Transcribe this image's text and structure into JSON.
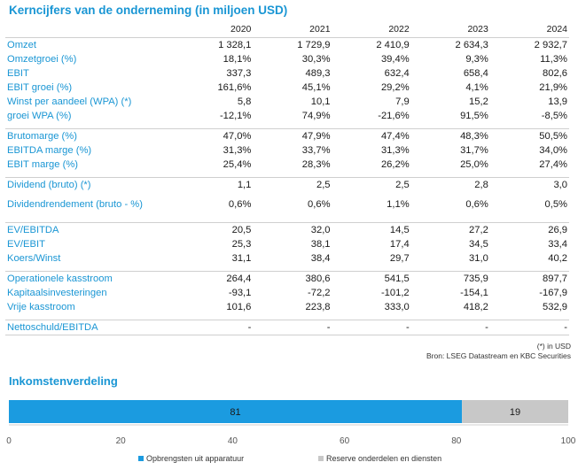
{
  "title": "Kerncijfers van de onderneming (in miljoen USD)",
  "years": [
    "2020",
    "2021",
    "2022",
    "2023",
    "2024"
  ],
  "groups": [
    [
      {
        "label": "Omzet",
        "values": [
          "1 328,1",
          "1 729,9",
          "2 410,9",
          "2 634,3",
          "2 932,7"
        ]
      },
      {
        "label": "Omzetgroei (%)",
        "values": [
          "18,1%",
          "30,3%",
          "39,4%",
          "9,3%",
          "11,3%"
        ]
      },
      {
        "label": "EBIT",
        "values": [
          "337,3",
          "489,3",
          "632,4",
          "658,4",
          "802,6"
        ]
      },
      {
        "label": "EBIT groei (%)",
        "values": [
          "161,6%",
          "45,1%",
          "29,2%",
          "4,1%",
          "21,9%"
        ]
      },
      {
        "label": "Winst per aandeel (WPA) (*)",
        "values": [
          "5,8",
          "10,1",
          "7,9",
          "15,2",
          "13,9"
        ]
      },
      {
        "label": "groei WPA (%)",
        "values": [
          "-12,1%",
          "74,9%",
          "-21,6%",
          "91,5%",
          "-8,5%"
        ]
      }
    ],
    [
      {
        "label": "Brutomarge (%)",
        "values": [
          "47,0%",
          "47,9%",
          "47,4%",
          "48,3%",
          "50,5%"
        ]
      },
      {
        "label": "EBITDA marge (%)",
        "values": [
          "31,3%",
          "33,7%",
          "31,3%",
          "31,7%",
          "34,0%"
        ]
      },
      {
        "label": "EBIT marge (%)",
        "values": [
          "25,4%",
          "28,3%",
          "26,2%",
          "25,0%",
          "27,4%"
        ]
      }
    ],
    [
      {
        "label": "Dividend (bruto) (*)",
        "values": [
          "1,1",
          "2,5",
          "2,5",
          "2,8",
          "3,0"
        ]
      },
      {
        "label": "Dividendrendement (bruto - %)",
        "values": [
          "0,6%",
          "0,6%",
          "1,1%",
          "0,6%",
          "0,5%"
        ],
        "tall": true
      }
    ],
    [
      {
        "label": "EV/EBITDA",
        "values": [
          "20,5",
          "32,0",
          "14,5",
          "27,2",
          "26,9"
        ]
      },
      {
        "label": "EV/EBIT",
        "values": [
          "25,3",
          "38,1",
          "17,4",
          "34,5",
          "33,4"
        ]
      },
      {
        "label": "Koers/Winst",
        "values": [
          "31,1",
          "38,4",
          "29,7",
          "31,0",
          "40,2"
        ]
      }
    ],
    [
      {
        "label": "Operationele kasstroom",
        "values": [
          "264,4",
          "380,6",
          "541,5",
          "735,9",
          "897,7"
        ]
      },
      {
        "label": "Kapitaalsinvesteringen",
        "values": [
          "-93,1",
          "-72,2",
          "-101,2",
          "-154,1",
          "-167,9"
        ]
      },
      {
        "label": "Vrije kasstroom",
        "values": [
          "101,6",
          "223,8",
          "333,0",
          "418,2",
          "532,9"
        ]
      }
    ],
    [
      {
        "label": "Nettoschuld/EBITDA",
        "values": [
          "-",
          "-",
          "-",
          "-",
          "-"
        ]
      }
    ]
  ],
  "footnote1": "(*) in USD",
  "footnote2": "Bron: LSEG Datastream en KBC Securities",
  "subtitle": "Inkomstenverdeling",
  "chart_data": {
    "type": "bar",
    "orientation": "horizontal-stacked",
    "title": "Inkomstenverdeling",
    "series": [
      {
        "name": "Opbrengsten uit apparatuur",
        "values": [
          81
        ],
        "color": "#1b9be0",
        "label": "81"
      },
      {
        "name": "Reserve onderdelen en diensten",
        "values": [
          19
        ],
        "color": "#c8c8c8",
        "label": "19"
      }
    ],
    "xlim": [
      0,
      100
    ],
    "xticks": [
      "0",
      "20",
      "40",
      "60",
      "80",
      "100"
    ],
    "legend": "bottom"
  }
}
